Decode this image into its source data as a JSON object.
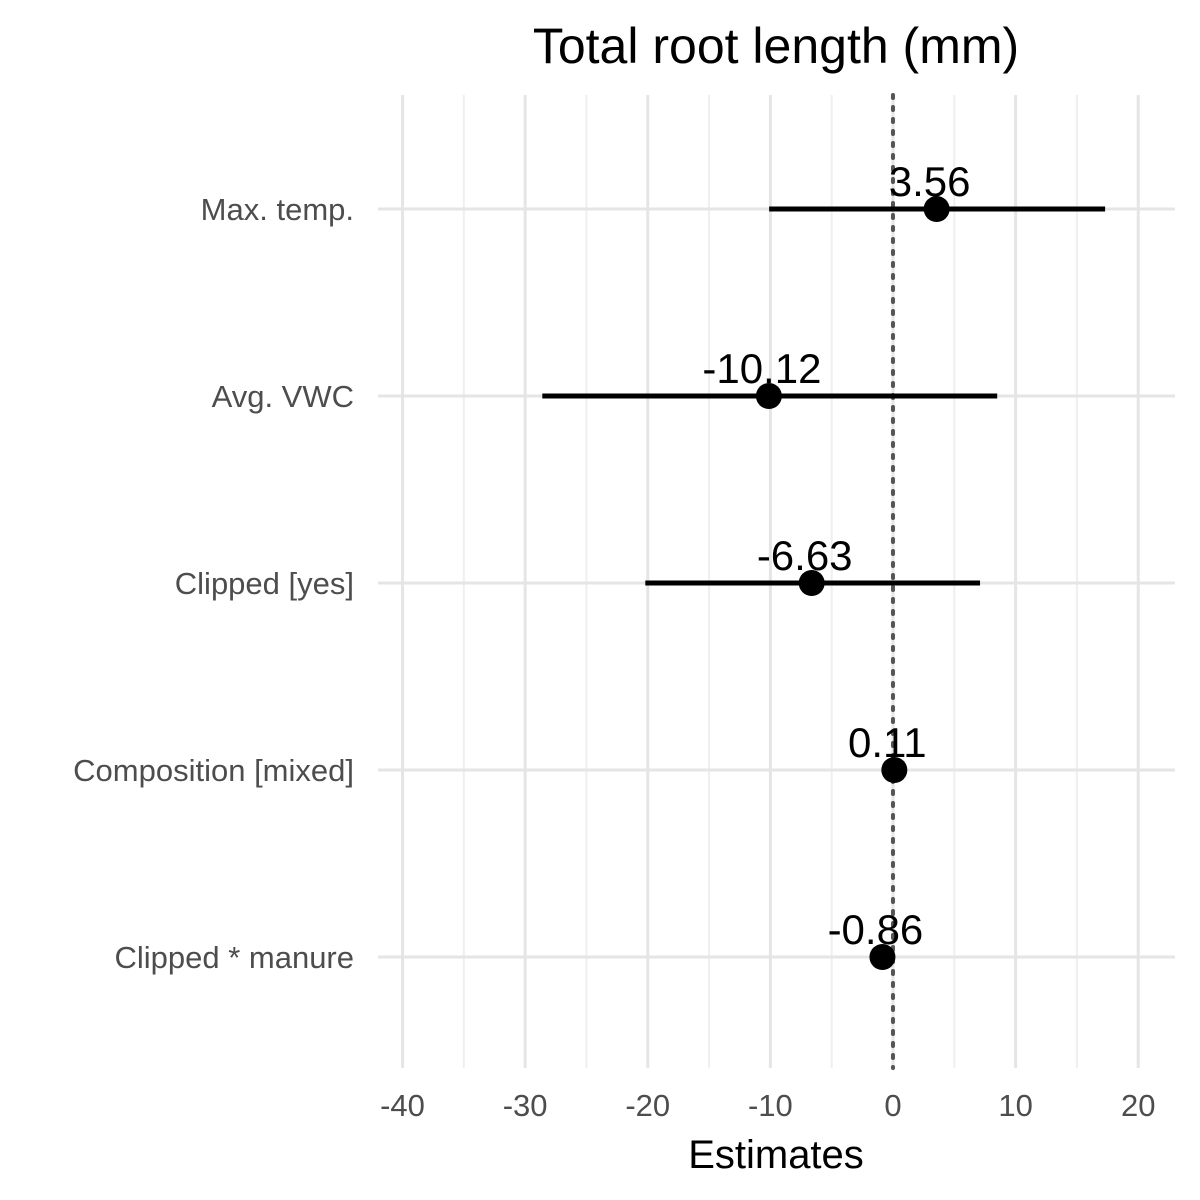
{
  "chart_data": {
    "type": "scatter",
    "subtype": "forest-plot",
    "title": "Total root length (mm)",
    "xlabel": "Estimates",
    "ylabel": "",
    "xlim": [
      -42,
      23
    ],
    "xticks": [
      -40,
      -30,
      -20,
      -10,
      0,
      10,
      20
    ],
    "xtick_labels": [
      "-40",
      "-30",
      "-20",
      "-10",
      "0",
      "10",
      "20"
    ],
    "reference_line": 0,
    "grid": true,
    "legend": "none",
    "categories": [
      "Max. temp.",
      "Avg. VWC",
      "Clipped [yes]",
      "Composition [mixed]",
      "Clipped * manure"
    ],
    "estimates": [
      3.56,
      -10.12,
      -6.63,
      0.11,
      -0.86
    ],
    "estimate_labels": [
      "3.56",
      "-10.12",
      "-6.63",
      "0.11",
      "-0.86"
    ],
    "ci_low": [
      -10.1,
      -28.6,
      -20.2,
      -0.5,
      -1.6
    ],
    "ci_high": [
      17.3,
      8.5,
      7.1,
      0.7,
      -0.1
    ]
  },
  "colors": {
    "points": "#000000",
    "grid_major": "#e5e5e5",
    "grid_minor": "#efefef",
    "reference_line": "#555555",
    "text": "#4d4d4d"
  }
}
